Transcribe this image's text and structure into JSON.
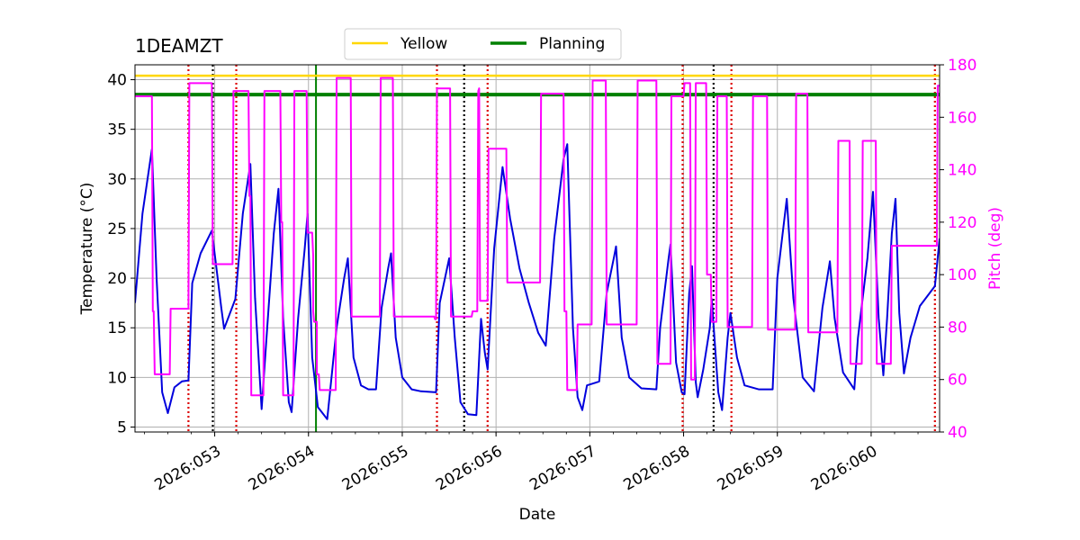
{
  "chart_data": {
    "type": "line",
    "title": "1DEAMZT",
    "xlabel": "Date",
    "ylabel_left": "Temperature ($^\\circ$C)",
    "ylabel_left_display": "Temperature (°C)",
    "ylabel_right": "Pitch (deg)",
    "xlim": [
      52.15,
      60.73
    ],
    "ylim_left": [
      4.5,
      41.5
    ],
    "ylim_right": [
      40,
      180
    ],
    "x_ticks": [
      {
        "value": 53,
        "label": "2026:053"
      },
      {
        "value": 54,
        "label": "2026:054"
      },
      {
        "value": 55,
        "label": "2026:055"
      },
      {
        "value": 56,
        "label": "2026:056"
      },
      {
        "value": 57,
        "label": "2026:057"
      },
      {
        "value": 58,
        "label": "2026:058"
      },
      {
        "value": 59,
        "label": "2026:059"
      },
      {
        "value": 60,
        "label": "2026:060"
      }
    ],
    "y_ticks_left": [
      5,
      10,
      15,
      20,
      25,
      30,
      35,
      40
    ],
    "y_ticks_right": [
      40,
      60,
      80,
      100,
      120,
      140,
      160,
      180
    ],
    "grid": true,
    "legend": {
      "placement": "top-center",
      "entries": [
        {
          "label": "Yellow",
          "color": "#FFD700"
        },
        {
          "label": "Planning",
          "color": "#008000"
        }
      ]
    },
    "limits": [
      {
        "name": "Yellow",
        "value": 40.4,
        "color": "#FFD700"
      },
      {
        "name": "Planning",
        "value": 38.5,
        "color": "#008000"
      }
    ],
    "vlines": [
      {
        "x": 52.72,
        "style": "dotted",
        "color": "#DD0000"
      },
      {
        "x": 53.23,
        "style": "dotted",
        "color": "#DD0000"
      },
      {
        "x": 55.37,
        "style": "dotted",
        "color": "#DD0000"
      },
      {
        "x": 55.91,
        "style": "dotted",
        "color": "#DD0000"
      },
      {
        "x": 57.99,
        "style": "dotted",
        "color": "#DD0000"
      },
      {
        "x": 58.51,
        "style": "dotted",
        "color": "#DD0000"
      },
      {
        "x": 60.68,
        "style": "dotted",
        "color": "#DD0000"
      },
      {
        "x": 52.98,
        "style": "dotted",
        "color": "#000000"
      },
      {
        "x": 55.66,
        "style": "dotted",
        "color": "#000000"
      },
      {
        "x": 58.32,
        "style": "dotted",
        "color": "#000000"
      },
      {
        "x": 54.08,
        "style": "solid",
        "color": "#008000"
      }
    ],
    "series": [
      {
        "name": "1DEAMZT",
        "axis": "left",
        "color": "#0000DD",
        "points": [
          [
            52.15,
            17.5
          ],
          [
            52.23,
            26.5
          ],
          [
            52.33,
            33.0
          ],
          [
            52.38,
            20.0
          ],
          [
            52.44,
            8.5
          ],
          [
            52.5,
            6.4
          ],
          [
            52.57,
            9.0
          ],
          [
            52.65,
            9.6
          ],
          [
            52.72,
            9.7
          ],
          [
            52.76,
            19.5
          ],
          [
            52.85,
            22.5
          ],
          [
            52.97,
            24.8
          ],
          [
            53.07,
            17.0
          ],
          [
            53.1,
            14.9
          ],
          [
            53.2,
            17.4
          ],
          [
            53.22,
            17.9
          ],
          [
            53.3,
            26.5
          ],
          [
            53.38,
            31.5
          ],
          [
            53.43,
            18.0
          ],
          [
            53.5,
            6.8
          ],
          [
            53.56,
            15.0
          ],
          [
            53.63,
            24.5
          ],
          [
            53.68,
            29.0
          ],
          [
            53.73,
            16.0
          ],
          [
            53.79,
            7.5
          ],
          [
            53.82,
            6.5
          ],
          [
            53.89,
            16.0
          ],
          [
            53.96,
            23.0
          ],
          [
            53.99,
            26.5
          ],
          [
            54.04,
            12.0
          ],
          [
            54.1,
            7.0
          ],
          [
            54.2,
            5.8
          ],
          [
            54.3,
            15.0
          ],
          [
            54.38,
            20.0
          ],
          [
            54.42,
            22.0
          ],
          [
            54.48,
            12.0
          ],
          [
            54.56,
            9.2
          ],
          [
            54.64,
            8.8
          ],
          [
            54.72,
            8.8
          ],
          [
            54.78,
            17.0
          ],
          [
            54.85,
            21.0
          ],
          [
            54.88,
            22.5
          ],
          [
            54.93,
            14.0
          ],
          [
            55.0,
            10.0
          ],
          [
            55.1,
            8.8
          ],
          [
            55.2,
            8.6
          ],
          [
            55.36,
            8.5
          ],
          [
            55.4,
            17.5
          ],
          [
            55.5,
            22.0
          ],
          [
            55.56,
            14.0
          ],
          [
            55.62,
            7.5
          ],
          [
            55.7,
            6.3
          ],
          [
            55.79,
            6.2
          ],
          [
            55.84,
            15.9
          ],
          [
            55.88,
            12.5
          ],
          [
            55.91,
            10.8
          ],
          [
            55.98,
            23.0
          ],
          [
            56.07,
            31.2
          ],
          [
            56.15,
            26.0
          ],
          [
            56.25,
            21.0
          ],
          [
            56.35,
            17.5
          ],
          [
            56.45,
            14.5
          ],
          [
            56.53,
            13.2
          ],
          [
            56.62,
            24.0
          ],
          [
            56.72,
            32.0
          ],
          [
            56.76,
            33.5
          ],
          [
            56.82,
            15.0
          ],
          [
            56.87,
            8.0
          ],
          [
            56.92,
            6.7
          ],
          [
            56.97,
            9.2
          ],
          [
            57.07,
            9.5
          ],
          [
            57.1,
            9.6
          ],
          [
            57.18,
            18.5
          ],
          [
            57.26,
            22.2
          ],
          [
            57.28,
            23.2
          ],
          [
            57.34,
            14.0
          ],
          [
            57.42,
            10.0
          ],
          [
            57.55,
            8.9
          ],
          [
            57.71,
            8.8
          ],
          [
            57.75,
            15.0
          ],
          [
            57.84,
            22.0
          ],
          [
            57.86,
            23.4
          ],
          [
            57.92,
            11.5
          ],
          [
            57.98,
            8.5
          ],
          [
            58.01,
            8.3
          ],
          [
            58.06,
            18.5
          ],
          [
            58.09,
            21.2
          ],
          [
            58.13,
            9.5
          ],
          [
            58.15,
            8.0
          ],
          [
            58.21,
            10.8
          ],
          [
            58.28,
            15.0
          ],
          [
            58.3,
            17.9
          ],
          [
            58.37,
            8.5
          ],
          [
            58.41,
            6.7
          ],
          [
            58.47,
            14.0
          ],
          [
            58.5,
            16.5
          ],
          [
            58.57,
            12.0
          ],
          [
            58.65,
            9.2
          ],
          [
            58.8,
            8.8
          ],
          [
            58.95,
            8.8
          ],
          [
            59.0,
            20.0
          ],
          [
            59.1,
            28.0
          ],
          [
            59.17,
            18.0
          ],
          [
            59.27,
            10.0
          ],
          [
            59.39,
            8.6
          ],
          [
            59.48,
            17.0
          ],
          [
            59.56,
            21.7
          ],
          [
            59.61,
            16.0
          ],
          [
            59.7,
            10.5
          ],
          [
            59.82,
            8.8
          ],
          [
            59.86,
            14.0
          ],
          [
            59.96,
            22.0
          ],
          [
            60.02,
            28.7
          ],
          [
            60.08,
            16.0
          ],
          [
            60.13,
            10.2
          ],
          [
            60.17,
            16.0
          ],
          [
            60.22,
            24.5
          ],
          [
            60.26,
            28.0
          ],
          [
            60.3,
            16.5
          ],
          [
            60.35,
            10.4
          ],
          [
            60.42,
            14.0
          ],
          [
            60.52,
            17.2
          ],
          [
            60.68,
            19.2
          ],
          [
            60.73,
            24.0
          ]
        ]
      },
      {
        "name": "Pitch",
        "axis": "right",
        "color": "#FF00FF",
        "points": [
          [
            52.15,
            168
          ],
          [
            52.33,
            168
          ],
          [
            52.34,
            86
          ],
          [
            52.35,
            86
          ],
          [
            52.36,
            62
          ],
          [
            52.52,
            62
          ],
          [
            52.53,
            87
          ],
          [
            52.72,
            87
          ],
          [
            52.73,
            173
          ],
          [
            52.97,
            173
          ],
          [
            52.98,
            104
          ],
          [
            53.19,
            104
          ],
          [
            53.2,
            170
          ],
          [
            53.36,
            170
          ],
          [
            53.37,
            130
          ],
          [
            53.38,
            130
          ],
          [
            53.39,
            54
          ],
          [
            53.52,
            54
          ],
          [
            53.53,
            170
          ],
          [
            53.7,
            170
          ],
          [
            53.71,
            120
          ],
          [
            53.72,
            120
          ],
          [
            53.73,
            54
          ],
          [
            53.84,
            54
          ],
          [
            53.85,
            170
          ],
          [
            53.98,
            170
          ],
          [
            53.99,
            116
          ],
          [
            54.04,
            116
          ],
          [
            54.05,
            107
          ],
          [
            54.05,
            86
          ],
          [
            54.06,
            82
          ],
          [
            54.09,
            82
          ],
          [
            54.09,
            62
          ],
          [
            54.11,
            62
          ],
          [
            54.12,
            56
          ],
          [
            54.29,
            56
          ],
          [
            54.3,
            175
          ],
          [
            54.45,
            175
          ],
          [
            54.46,
            84
          ],
          [
            54.76,
            84
          ],
          [
            54.77,
            175
          ],
          [
            54.9,
            175
          ],
          [
            54.91,
            84
          ],
          [
            55.34,
            84
          ],
          [
            55.35,
            83
          ],
          [
            55.36,
            83
          ],
          [
            55.37,
            171
          ],
          [
            55.51,
            171
          ],
          [
            55.52,
            84
          ],
          [
            55.74,
            84
          ],
          [
            55.75,
            86
          ],
          [
            55.8,
            86
          ],
          [
            55.81,
            170
          ],
          [
            55.82,
            171
          ],
          [
            55.83,
            90
          ],
          [
            55.91,
            90
          ],
          [
            55.92,
            148
          ],
          [
            56.11,
            148
          ],
          [
            56.12,
            97
          ],
          [
            56.47,
            97
          ],
          [
            56.48,
            169
          ],
          [
            56.72,
            169
          ],
          [
            56.73,
            86
          ],
          [
            56.75,
            86
          ],
          [
            56.76,
            56
          ],
          [
            56.86,
            56
          ],
          [
            56.87,
            81
          ],
          [
            57.02,
            81
          ],
          [
            57.03,
            174
          ],
          [
            57.17,
            174
          ],
          [
            57.18,
            81
          ],
          [
            57.5,
            81
          ],
          [
            57.51,
            174
          ],
          [
            57.71,
            174
          ],
          [
            57.72,
            66
          ],
          [
            57.86,
            66
          ],
          [
            57.87,
            168
          ],
          [
            58.0,
            168
          ],
          [
            58.01,
            173
          ],
          [
            58.07,
            173
          ],
          [
            58.08,
            60
          ],
          [
            58.12,
            60
          ],
          [
            58.13,
            173
          ],
          [
            58.24,
            173
          ],
          [
            58.25,
            100
          ],
          [
            58.29,
            100
          ],
          [
            58.3,
            82
          ],
          [
            58.35,
            82
          ],
          [
            58.36,
            168
          ],
          [
            58.46,
            168
          ],
          [
            58.47,
            80
          ],
          [
            58.73,
            80
          ],
          [
            58.74,
            168
          ],
          [
            58.89,
            168
          ],
          [
            58.9,
            79
          ],
          [
            59.19,
            79
          ],
          [
            59.2,
            169
          ],
          [
            59.32,
            169
          ],
          [
            59.33,
            78
          ],
          [
            59.64,
            78
          ],
          [
            59.65,
            151
          ],
          [
            59.77,
            151
          ],
          [
            59.78,
            66
          ],
          [
            59.9,
            66
          ],
          [
            59.91,
            151
          ],
          [
            60.05,
            151
          ],
          [
            60.06,
            66
          ],
          [
            60.21,
            66
          ],
          [
            60.22,
            111
          ],
          [
            60.7,
            111
          ],
          [
            60.71,
            172
          ],
          [
            60.73,
            172
          ]
        ]
      }
    ]
  }
}
